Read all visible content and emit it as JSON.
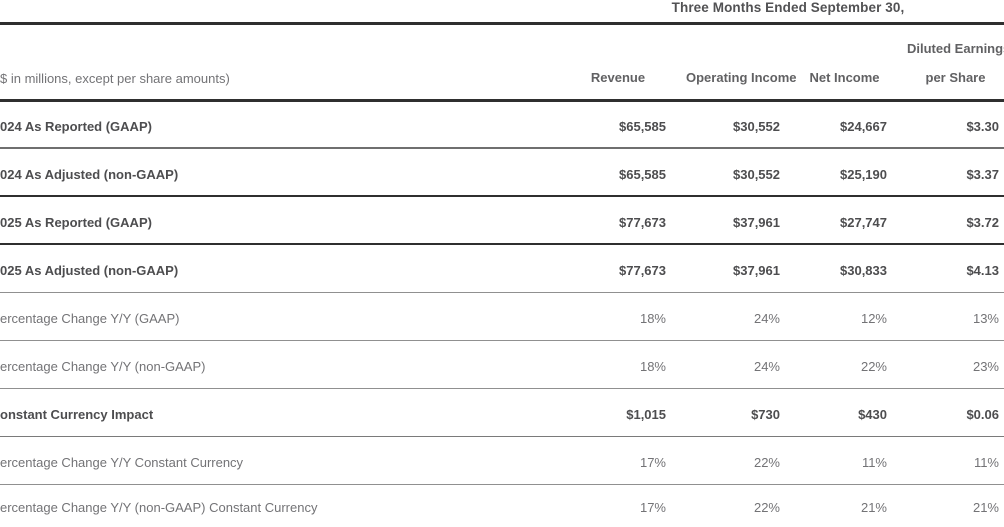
{
  "table": {
    "period_title": "Three Months Ended September 30,",
    "unit_note": "$ in millions, except per share amounts)",
    "columns": {
      "revenue": "Revenue",
      "operating_income": "Operating Income",
      "net_income": "Net Income",
      "eps_line1": "Diluted Earnings",
      "eps_line2": "per Share"
    },
    "rows": [
      {
        "label": "024 As Reported (GAAP)",
        "revenue": "$65,585",
        "operating_income": "$30,552",
        "net_income": "$24,667",
        "eps": "$3.30"
      },
      {
        "label": "024 As Adjusted (non-GAAP)",
        "revenue": "$65,585",
        "operating_income": "$30,552",
        "net_income": "$25,190",
        "eps": "$3.37"
      },
      {
        "label": "025 As Reported (GAAP)",
        "revenue": "$77,673",
        "operating_income": "$37,961",
        "net_income": "$27,747",
        "eps": "$3.72"
      },
      {
        "label": "025 As Adjusted (non-GAAP)",
        "revenue": "$77,673",
        "operating_income": "$37,961",
        "net_income": "$30,833",
        "eps": "$4.13"
      },
      {
        "label": "ercentage Change Y/Y (GAAP)",
        "revenue": "18%",
        "operating_income": "24%",
        "net_income": "12%",
        "eps": "13%"
      },
      {
        "label": "ercentage Change Y/Y (non-GAAP)",
        "revenue": "18%",
        "operating_income": "24%",
        "net_income": "22%",
        "eps": "23%"
      },
      {
        "label": "onstant Currency Impact",
        "revenue": "$1,015",
        "operating_income": "$730",
        "net_income": "$430",
        "eps": "$0.06"
      },
      {
        "label": "ercentage Change Y/Y Constant Currency",
        "revenue": "17%",
        "operating_income": "22%",
        "net_income": "11%",
        "eps": "11%"
      },
      {
        "label": "ercentage Change Y/Y (non-GAAP) Constant Currency",
        "revenue": "17%",
        "operating_income": "22%",
        "net_income": "21%",
        "eps": "21%"
      }
    ],
    "colors": {
      "bold_text": "#4d4d4f",
      "regular_text": "#737376",
      "header_text": "#616163",
      "rule_dark": "#2f2f2f",
      "rule_light": "#909090"
    }
  }
}
